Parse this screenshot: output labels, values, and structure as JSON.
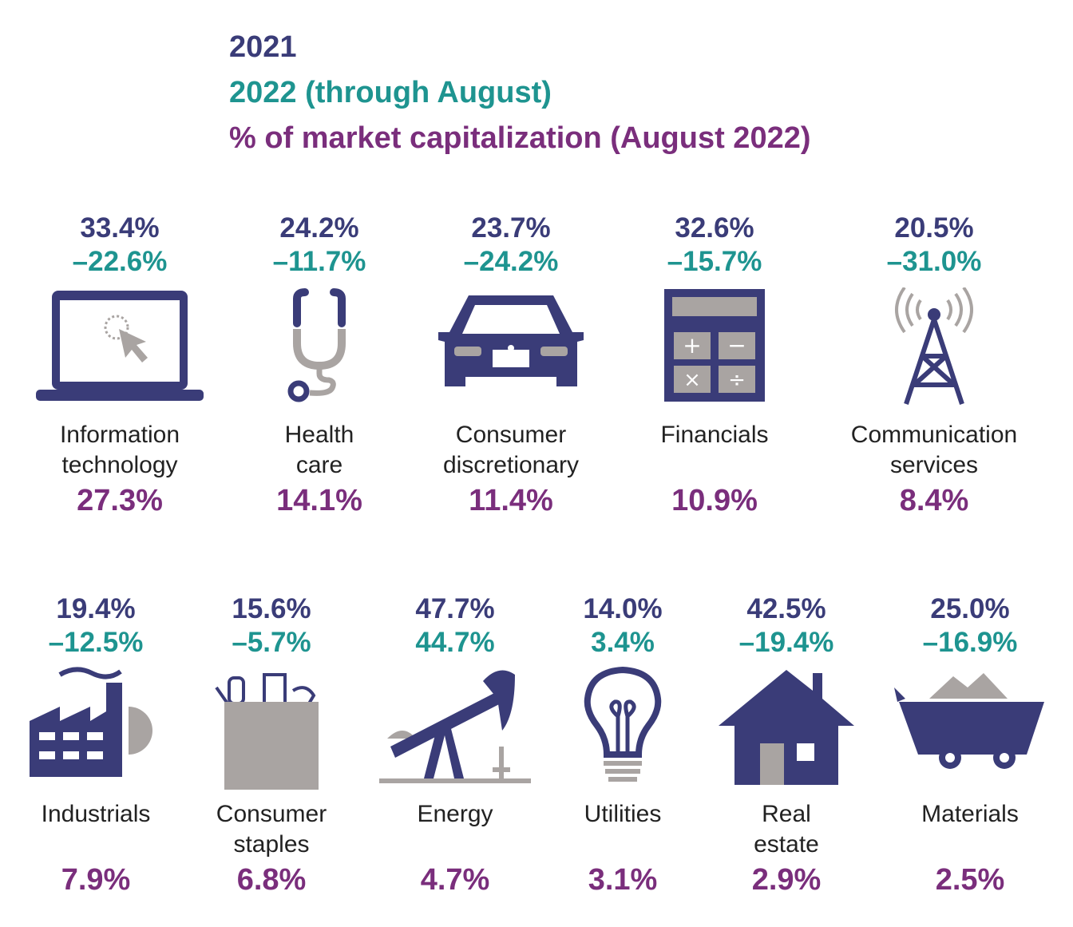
{
  "legend": {
    "year_2021": "2021",
    "year_2022": "2022 (through August)",
    "market_cap": "% of market capitalization (August 2022)"
  },
  "colors": {
    "return_2021": "#3a3c78",
    "return_2022": "#1e9490",
    "market_cap": "#7a2e7c",
    "icon_primary": "#3a3c78",
    "icon_secondary": "#a9a4a2"
  },
  "chart_data": {
    "type": "table",
    "columns": [
      "2021",
      "2022 (through August)",
      "% of market capitalization (August 2022)"
    ],
    "sectors": [
      {
        "name_lines": [
          "Information",
          "technology"
        ],
        "icon": "laptop-icon",
        "r2021": "33.4%",
        "r2022": "–22.6%",
        "cap": "27.3%"
      },
      {
        "name_lines": [
          "Health",
          "care"
        ],
        "icon": "stethoscope-icon",
        "r2021": "24.2%",
        "r2022": "–11.7%",
        "cap": "14.1%"
      },
      {
        "name_lines": [
          "Consumer",
          "discretionary"
        ],
        "icon": "car-icon",
        "r2021": "23.7%",
        "r2022": "–24.2%",
        "cap": "11.4%"
      },
      {
        "name_lines": [
          "Financials",
          ""
        ],
        "icon": "calculator-icon",
        "r2021": "32.6%",
        "r2022": "–15.7%",
        "cap": "10.9%"
      },
      {
        "name_lines": [
          "Communication",
          "services"
        ],
        "icon": "antenna-tower-icon",
        "r2021": "20.5%",
        "r2022": "–31.0%",
        "cap": "8.4%"
      },
      {
        "name_lines": [
          "Industrials",
          ""
        ],
        "icon": "factory-icon",
        "r2021": "19.4%",
        "r2022": "–12.5%",
        "cap": "7.9%"
      },
      {
        "name_lines": [
          "Consumer",
          "staples"
        ],
        "icon": "grocery-bag-icon",
        "r2021": "15.6%",
        "r2022": "–5.7%",
        "cap": "6.8%"
      },
      {
        "name_lines": [
          "Energy",
          ""
        ],
        "icon": "oil-pump-icon",
        "r2021": "47.7%",
        "r2022": "44.7%",
        "cap": "4.7%"
      },
      {
        "name_lines": [
          "Utilities",
          ""
        ],
        "icon": "light-bulb-icon",
        "r2021": "14.0%",
        "r2022": "3.4%",
        "cap": "3.1%"
      },
      {
        "name_lines": [
          "Real",
          "estate"
        ],
        "icon": "house-icon",
        "r2021": "42.5%",
        "r2022": "–19.4%",
        "cap": "2.9%"
      },
      {
        "name_lines": [
          "Materials",
          ""
        ],
        "icon": "mine-cart-icon",
        "r2021": "25.0%",
        "r2022": "–16.9%",
        "cap": "2.5%"
      }
    ]
  }
}
